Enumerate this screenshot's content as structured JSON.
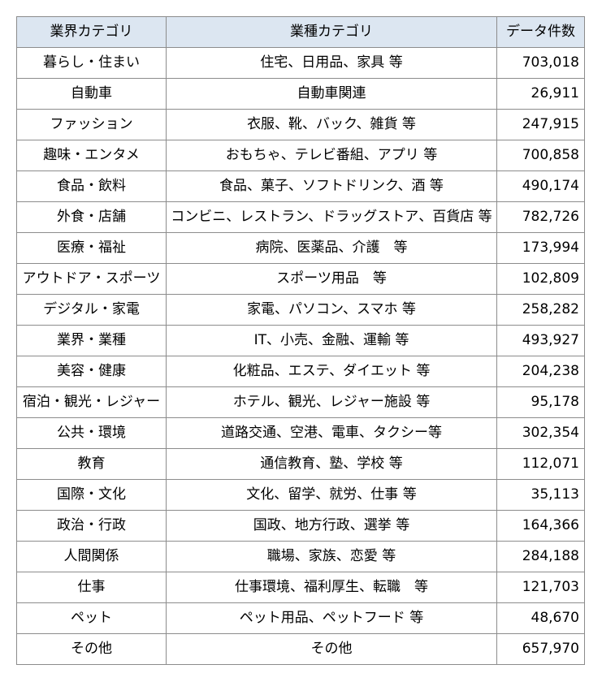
{
  "headers": [
    "業界カテゴリ",
    "業種カテゴリ",
    "データ件数"
  ],
  "rows": [
    {
      "category": "暮らし・住まい",
      "types": "住宅、日用品、家具 等",
      "count": "703,018"
    },
    {
      "category": "自動車",
      "types": "自動車関連",
      "count": "26,911"
    },
    {
      "category": "ファッション",
      "types": "衣服、靴、バック、雑貨 等",
      "count": "247,915"
    },
    {
      "category": "趣味・エンタメ",
      "types": "おもちゃ、テレビ番組、アプリ 等",
      "count": "700,858"
    },
    {
      "category": "食品・飲料",
      "types": "食品、菓子、ソフトドリンク、酒 等",
      "count": "490,174"
    },
    {
      "category": "外食・店舗",
      "types": "コンビニ、レストラン、ドラッグストア、百貨店 等",
      "count": "782,726"
    },
    {
      "category": "医療・福祉",
      "types": "病院、医薬品、介護　等",
      "count": "173,994"
    },
    {
      "category": "アウトドア・スポーツ",
      "types": "スポーツ用品　等",
      "count": "102,809"
    },
    {
      "category": "デジタル・家電",
      "types": "家電、パソコン、スマホ 等",
      "count": "258,282"
    },
    {
      "category": "業界・業種",
      "types": "IT、小売、金融、運輸 等",
      "count": "493,927"
    },
    {
      "category": "美容・健康",
      "types": "化粧品、エステ、ダイエット 等",
      "count": "204,238"
    },
    {
      "category": "宿泊・観光・レジャー",
      "types": "ホテル、観光、レジャー施設 等",
      "count": "95,178"
    },
    {
      "category": "公共・環境",
      "types": "道路交通、空港、電車、タクシー等",
      "count": "302,354"
    },
    {
      "category": "教育",
      "types": "通信教育、塾、学校 等",
      "count": "112,071"
    },
    {
      "category": "国際・文化",
      "types": "文化、留学、就労、仕事 等",
      "count": "35,113"
    },
    {
      "category": "政治・行政",
      "types": "国政、地方行政、選挙 等",
      "count": "164,366"
    },
    {
      "category": "人間関係",
      "types": "職場、家族、恋愛 等",
      "count": "284,188"
    },
    {
      "category": "仕事",
      "types": "仕事環境、福利厚生、転職　等",
      "count": "121,703"
    },
    {
      "category": "ペット",
      "types": "ペット用品、ペットフード 等",
      "count": "48,670"
    },
    {
      "category": "その他",
      "types": "その他",
      "count": "657,970"
    }
  ]
}
